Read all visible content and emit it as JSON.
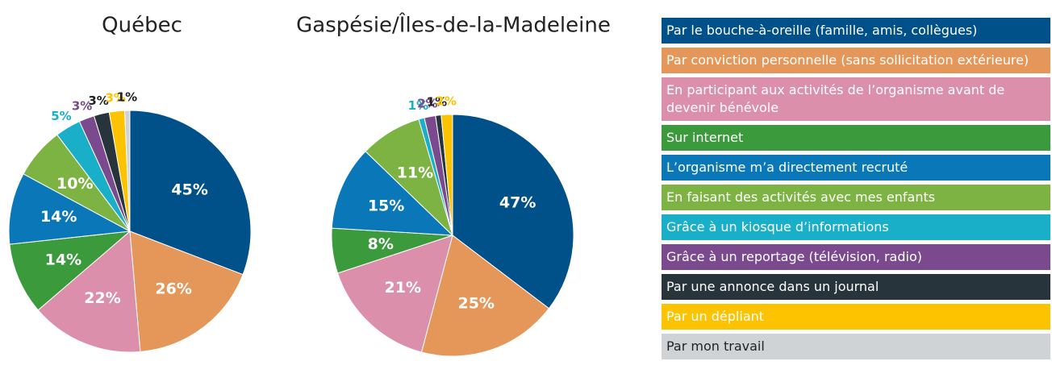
{
  "chart_data": [
    {
      "type": "pie",
      "title": "Québec",
      "categories": [
        "Par le bouche-à-oreille (famille, amis, collègues)",
        "Par conviction personnelle (sans sollicitation extérieure)",
        "En participant aux activités de l’organisme avant de devenir bénévole",
        "Sur internet",
        "L’organisme m’a directement recruté",
        "En faisant des activités avec mes enfants",
        "Grâce à un kiosque d’informations",
        "Grâce à un reportage (télévision, radio)",
        "Par une annonce dans un journal",
        "Par un dépliant",
        "Par mon travail"
      ],
      "colors": [
        "#00508a",
        "#e5975a",
        "#dc8fab",
        "#3a9a3c",
        "#0a78b8",
        "#7db342",
        "#1aafc9",
        "#7b4a8e",
        "#27343b",
        "#fdc300",
        "#d0d3d5"
      ],
      "values": [
        45,
        26,
        22,
        14,
        14,
        10,
        5,
        3,
        3,
        3,
        1
      ],
      "value_labels": [
        "45%",
        "26%",
        "22%",
        "14%",
        "14%",
        "10%",
        "5%",
        "3%",
        "3%",
        "3%",
        "1%"
      ]
    },
    {
      "type": "pie",
      "title": "Gaspésie/Îles-de-la-Madeleine",
      "values": [
        47,
        25,
        21,
        8,
        15,
        11,
        1,
        2,
        1,
        2,
        null
      ],
      "value_labels": [
        "47%",
        "25%",
        "21%",
        "8%",
        "15%",
        "11%",
        "1%",
        "2%",
        "1%",
        "2%",
        null
      ]
    }
  ]
}
